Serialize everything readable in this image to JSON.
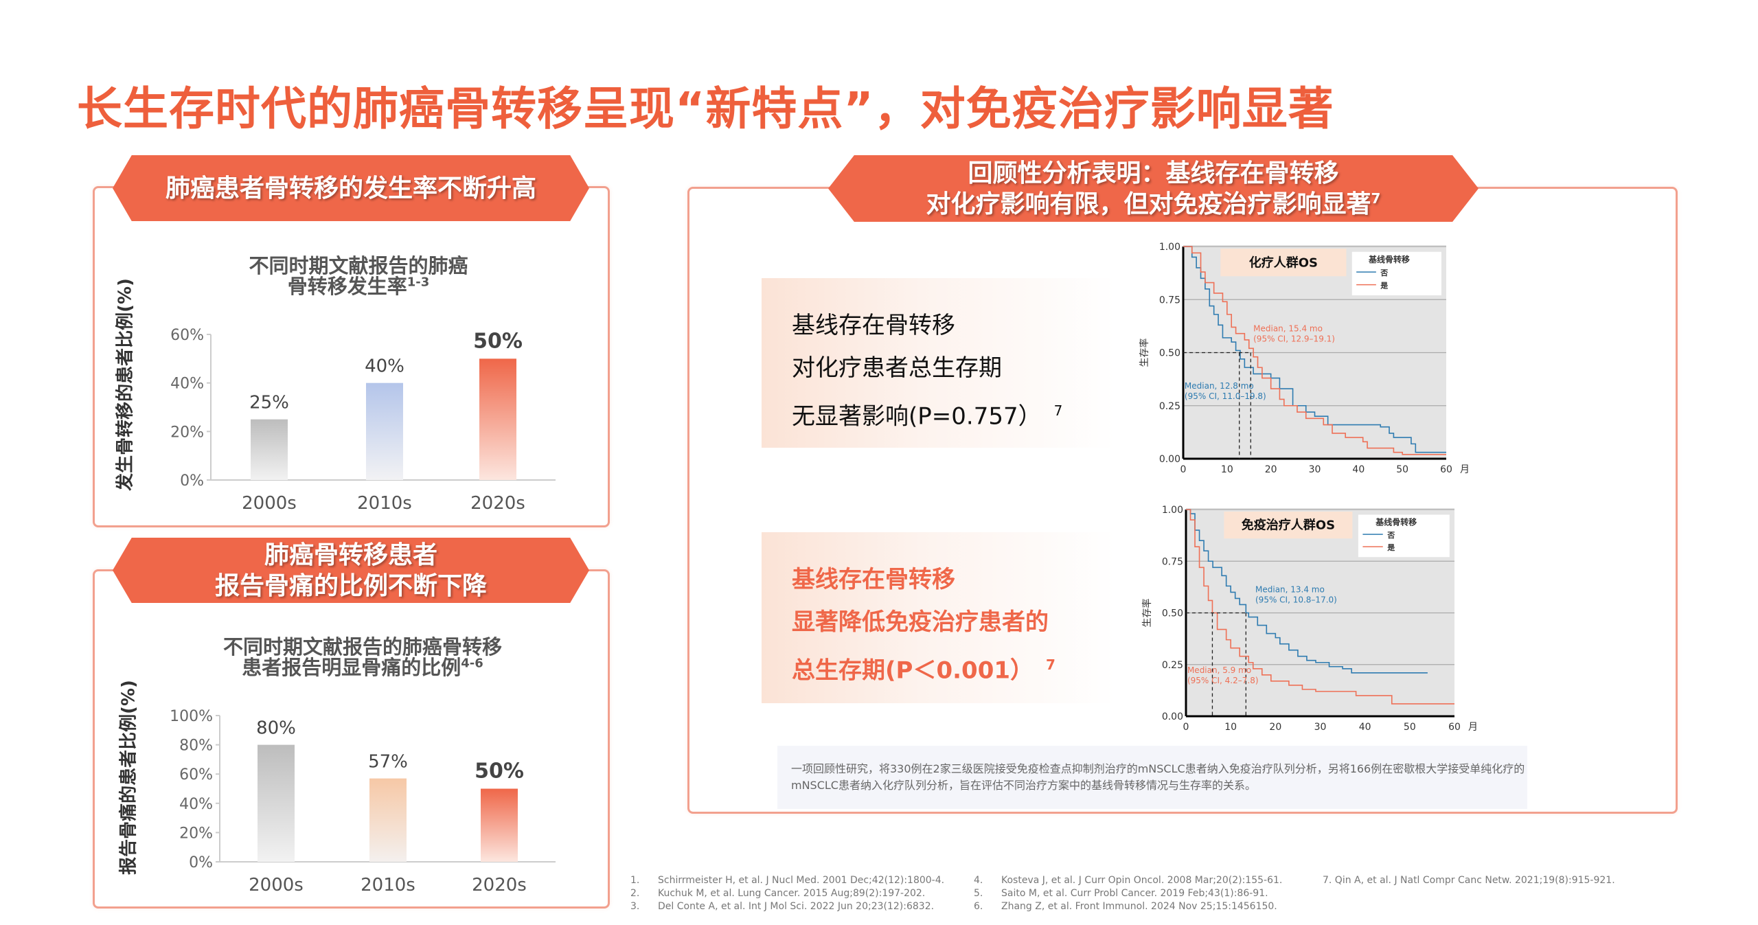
{
  "title": "长生存时代的肺癌骨转移呈现“新特点”，对免疫治疗影响显著",
  "left_top": {
    "banner": "肺癌患者骨转移的发生率不断升高"
  },
  "left_bottom": {
    "banner_line1": "肺癌骨转移患者",
    "banner_line2": "报告骨痛的比例不断下降"
  },
  "right": {
    "banner_line1": "回顾性分析表明：基线存在骨转移",
    "banner_line2": "对化疗影响有限，但对免疫治疗影响显著",
    "banner_sup": "7",
    "box1": {
      "line1": "基线存在骨转移",
      "line2": "对化疗患者总生存期",
      "line3": "无显著影响(P=0.757）",
      "sup": "7"
    },
    "box2": {
      "line1": "基线存在骨转移",
      "line2": "显著降低免疫治疗患者的",
      "line3": "总生存期(P＜0.001）",
      "sup": "7"
    },
    "footnote": "一项回顾性研究，将330例在2家三级医院接受免疫检查点抑制剂治疗的mNSCLC患者纳入免疫治疗队列分析，另将166例在密歇根大学接受单纯化疗的mNSCLC患者纳入化疗队列分析，旨在评估不同治疗方案中的基线骨转移情况与生存率的关系。"
  },
  "references": [
    {
      "n": "1.",
      "text": "Schirrmeister H, et al. J Nucl Med. 2001 Dec;42(12):1800-4."
    },
    {
      "n": "2.",
      "text": "Kuchuk M, et al. Lung Cancer. 2015 Aug;89(2):197-202."
    },
    {
      "n": "3.",
      "text": "Del Conte A, et al. Int J Mol Sci. 2022 Jun 20;23(12):6832."
    },
    {
      "n": "4.",
      "text": "Kosteva J, et al. J Curr Opin Oncol. 2008 Mar;20(2):155-61."
    },
    {
      "n": "5.",
      "text": "Saito M, et al. Curr Probl Cancer. 2019 Feb;43(1):86-91."
    },
    {
      "n": "6.",
      "text": "Zhang Z, et al. Front Immunol. 2024 Nov 25;15:1456150."
    },
    {
      "n": "",
      "text": "7. Qin A, et al. J Natl Compr Canc Netw. 2021;19(8):915-921."
    }
  ],
  "colors": {
    "accent": "#ef6749",
    "blue": "#2e7bb0",
    "red": "#ee7056"
  },
  "chart_data": [
    {
      "type": "bar",
      "title": "不同时期文献报告的肺癌骨转移发生率",
      "title_line1": "不同时期文献报告的肺癌",
      "title_line2": "骨转移发生率",
      "title_sup": "1-3",
      "ylabel": "发生骨转移的患者比例(%)",
      "categories": [
        "2000s",
        "2010s",
        "2020s"
      ],
      "values": [
        25,
        40,
        50
      ],
      "labels": [
        "25%",
        "40%",
        "50%"
      ],
      "yticks": [
        "0%",
        "20%",
        "40%",
        "60%"
      ],
      "ylim": [
        0,
        60
      ]
    },
    {
      "type": "bar",
      "title": "不同时期文献报告的肺癌骨转移患者报告明显骨痛的比例",
      "title_line1": "不同时期文献报告的肺癌骨转移",
      "title_line2": "患者报告明显骨痛的比例",
      "title_sup": "4-6",
      "ylabel": "报告骨痛的患者比例(%)",
      "categories": [
        "2000s",
        "2010s",
        "2020s"
      ],
      "values": [
        80,
        57,
        50
      ],
      "labels": [
        "80%",
        "57%",
        "50%"
      ],
      "yticks": [
        "0%",
        "20%",
        "40%",
        "60%",
        "80%",
        "100%"
      ],
      "ylim": [
        0,
        100
      ]
    },
    {
      "type": "line",
      "title": "化疗人群OS",
      "ylabel": "生存率",
      "xunit": "月",
      "xlim": [
        0,
        60
      ],
      "ylim": [
        0,
        1
      ],
      "xticks": [
        "0",
        "10",
        "20",
        "30",
        "40",
        "50",
        "60"
      ],
      "yticks": [
        "0.00",
        "0.25",
        "0.50",
        "0.75",
        "1.00"
      ],
      "legend_title": "基线骨转移",
      "legend_placement": "top-right",
      "series": [
        {
          "name": "否",
          "median": 12.8,
          "ann1": "Median, 12.8 mo",
          "ann2": "(95% CI, 11.0–19.8)",
          "points": [
            [
              0,
              1
            ],
            [
              2,
              0.95
            ],
            [
              3,
              0.9
            ],
            [
              4,
              0.85
            ],
            [
              5,
              0.8
            ],
            [
              6,
              0.72
            ],
            [
              7,
              0.68
            ],
            [
              8,
              0.63
            ],
            [
              9,
              0.57
            ],
            [
              11,
              0.55
            ],
            [
              12,
              0.51
            ],
            [
              13,
              0.47
            ],
            [
              14,
              0.43
            ],
            [
              16,
              0.4
            ],
            [
              20,
              0.38
            ],
            [
              22,
              0.33
            ],
            [
              25,
              0.25
            ],
            [
              28,
              0.22
            ],
            [
              30,
              0.2
            ],
            [
              33,
              0.16
            ],
            [
              45,
              0.15
            ],
            [
              47,
              0.12
            ],
            [
              48,
              0.1
            ],
            [
              52,
              0.07
            ],
            [
              53,
              0.03
            ],
            [
              60,
              0.03
            ]
          ]
        },
        {
          "name": "是",
          "median": 15.4,
          "ann1": "Median, 15.4 mo",
          "ann2": "(95% CI, 12.9–19.1)",
          "points": [
            [
              0,
              1
            ],
            [
              2,
              0.97
            ],
            [
              4,
              0.88
            ],
            [
              5,
              0.83
            ],
            [
              7,
              0.78
            ],
            [
              9,
              0.74
            ],
            [
              10,
              0.68
            ],
            [
              11,
              0.62
            ],
            [
              12,
              0.59
            ],
            [
              14,
              0.56
            ],
            [
              15,
              0.52
            ],
            [
              16,
              0.48
            ],
            [
              17,
              0.43
            ],
            [
              18,
              0.38
            ],
            [
              20,
              0.33
            ],
            [
              22,
              0.28
            ],
            [
              23,
              0.25
            ],
            [
              26,
              0.22
            ],
            [
              28,
              0.19
            ],
            [
              32,
              0.16
            ],
            [
              34,
              0.12
            ],
            [
              37,
              0.1
            ],
            [
              41,
              0.08
            ],
            [
              42,
              0.05
            ],
            [
              48,
              0.03
            ],
            [
              50,
              0.02
            ],
            [
              60,
              0.02
            ]
          ]
        }
      ]
    },
    {
      "type": "line",
      "title": "免疫治疗人群OS",
      "ylabel": "生存率",
      "xunit": "月",
      "xlim": [
        0,
        60
      ],
      "ylim": [
        0,
        1
      ],
      "xticks": [
        "0",
        "10",
        "20",
        "30",
        "40",
        "50",
        "60"
      ],
      "yticks": [
        "0.00",
        "0.25",
        "0.50",
        "0.75",
        "1.00"
      ],
      "legend_title": "基线骨转移",
      "legend_placement": "top-right",
      "series": [
        {
          "name": "否",
          "median": 13.4,
          "ann1": "Median, 13.4 mo",
          "ann2": "(95% CI, 10.8–17.0)",
          "points": [
            [
              0,
              1
            ],
            [
              1,
              0.98
            ],
            [
              2,
              0.9
            ],
            [
              3,
              0.85
            ],
            [
              4,
              0.8
            ],
            [
              5,
              0.75
            ],
            [
              6,
              0.72
            ],
            [
              8,
              0.68
            ],
            [
              9,
              0.63
            ],
            [
              10,
              0.6
            ],
            [
              11,
              0.57
            ],
            [
              12,
              0.54
            ],
            [
              13.4,
              0.5
            ],
            [
              14,
              0.48
            ],
            [
              16,
              0.44
            ],
            [
              18,
              0.4
            ],
            [
              20,
              0.38
            ],
            [
              21,
              0.35
            ],
            [
              23,
              0.32
            ],
            [
              25,
              0.29
            ],
            [
              27,
              0.27
            ],
            [
              29,
              0.26
            ],
            [
              32,
              0.24
            ],
            [
              35,
              0.23
            ],
            [
              37,
              0.21
            ],
            [
              54,
              0.21
            ]
          ]
        },
        {
          "name": "是",
          "median": 5.9,
          "ann1": "Median, 5.9 mo",
          "ann2": "(95% CI, 4.2–7.8)",
          "points": [
            [
              0,
              1
            ],
            [
              1,
              0.95
            ],
            [
              2,
              0.82
            ],
            [
              3,
              0.72
            ],
            [
              4,
              0.63
            ],
            [
              5,
              0.56
            ],
            [
              5.9,
              0.5
            ],
            [
              7,
              0.42
            ],
            [
              9,
              0.37
            ],
            [
              10,
              0.33
            ],
            [
              12,
              0.29
            ],
            [
              14,
              0.26
            ],
            [
              15,
              0.23
            ],
            [
              17,
              0.2
            ],
            [
              19,
              0.17
            ],
            [
              23,
              0.15
            ],
            [
              26,
              0.13
            ],
            [
              29,
              0.12
            ],
            [
              38,
              0.1
            ],
            [
              46,
              0.06
            ],
            [
              60,
              0.06
            ]
          ]
        }
      ]
    }
  ]
}
